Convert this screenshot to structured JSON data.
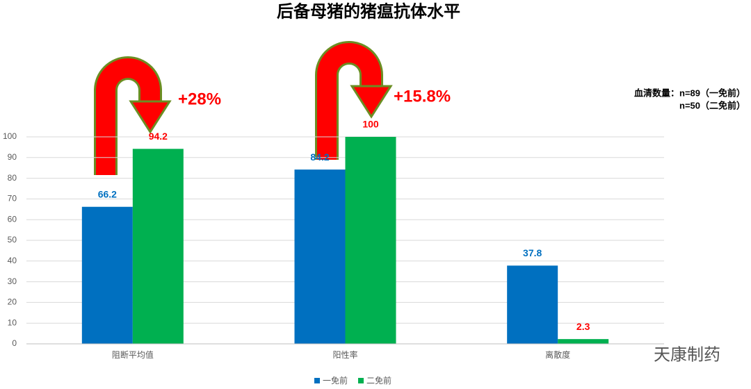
{
  "chart_data": {
    "type": "bar",
    "title": "后备母猪的猪瘟抗体水平",
    "categories": [
      "阻断平均值",
      "阳性率",
      "离散度"
    ],
    "series": [
      {
        "name": "一免前",
        "color": "#0070c0",
        "label_color": "#0070c0",
        "values": [
          66.2,
          84.2,
          37.8
        ]
      },
      {
        "name": "二免前",
        "color": "#00b050",
        "label_color": "#ff0000",
        "values": [
          94.2,
          100,
          2.3
        ]
      }
    ],
    "ylim": [
      0,
      100
    ],
    "yticks": [
      0,
      10,
      20,
      30,
      40,
      50,
      60,
      70,
      80,
      90,
      100
    ],
    "grid": true,
    "annotations": [
      "+28%",
      "+15.8%"
    ],
    "notes": [
      "血清数量：n=89（一免前）",
      "n=50（二免前）"
    ],
    "watermark": "天康制药"
  }
}
